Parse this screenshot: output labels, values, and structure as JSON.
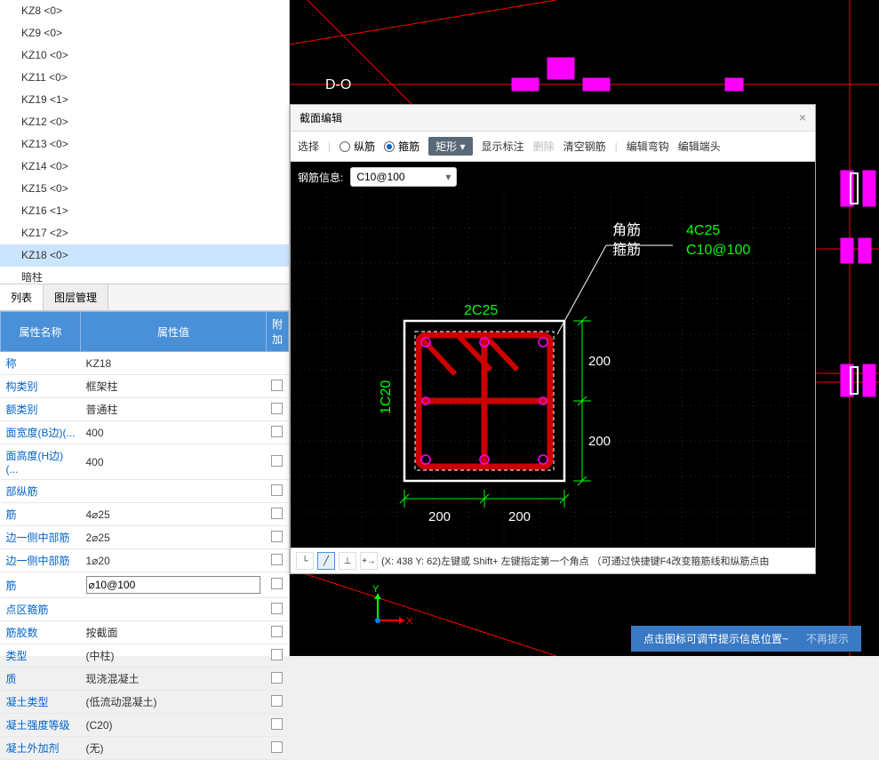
{
  "tree": {
    "items": [
      {
        "label": "KZ8  <0>",
        "selected": false
      },
      {
        "label": "KZ9  <0>",
        "selected": false
      },
      {
        "label": "KZ10  <0>",
        "selected": false
      },
      {
        "label": "KZ11  <0>",
        "selected": false
      },
      {
        "label": "KZ19  <1>",
        "selected": false
      },
      {
        "label": "KZ12  <0>",
        "selected": false
      },
      {
        "label": "KZ13  <0>",
        "selected": false
      },
      {
        "label": "KZ14  <0>",
        "selected": false
      },
      {
        "label": "KZ15  <0>",
        "selected": false
      },
      {
        "label": "KZ16  <1>",
        "selected": false
      },
      {
        "label": "KZ17  <2>",
        "selected": false
      },
      {
        "label": "KZ18  <0>",
        "selected": true
      },
      {
        "label": "暗柱",
        "selected": false
      }
    ]
  },
  "tabs": {
    "tab1": "列表",
    "tab2": "图层管理"
  },
  "props": {
    "header_name": "属性名称",
    "header_value": "属性值",
    "header_extra": "附加",
    "rows": [
      {
        "name": "称",
        "value": "KZ18"
      },
      {
        "name": "构类别",
        "value": "框架柱",
        "chk": true
      },
      {
        "name": "额类别",
        "value": "普通柱",
        "chk": true
      },
      {
        "name": "面宽度(B边)(...",
        "value": "400",
        "chk": true
      },
      {
        "name": "面高度(H边)(...",
        "value": "400",
        "chk": true
      },
      {
        "name": "部纵筋",
        "value": "",
        "chk": true
      },
      {
        "name": "筋",
        "value": "4⌀25",
        "chk": true
      },
      {
        "name": "边一侧中部筋",
        "value": "2⌀25",
        "chk": true
      },
      {
        "name": "边一侧中部筋",
        "value": "1⌀20",
        "chk": true
      },
      {
        "name": "筋",
        "value": "⌀10@100",
        "chk": true,
        "editing": true
      },
      {
        "name": "点区箍筋",
        "value": "",
        "chk": true
      },
      {
        "name": "筋胶数",
        "value": "按截面",
        "chk": true
      },
      {
        "name": "类型",
        "value": "(中柱)",
        "chk": true
      },
      {
        "name": "质",
        "value": "现浇混凝土",
        "chk": true
      },
      {
        "name": "凝土类型",
        "value": "(低流动混凝土)",
        "chk": true
      },
      {
        "name": "凝土强度等级",
        "value": "(C20)",
        "chk": true
      },
      {
        "name": "凝土外加剂",
        "value": "(无)",
        "chk": true
      }
    ]
  },
  "dialog": {
    "title": "截面编辑",
    "toolbar": {
      "select": "选择",
      "radio1": "纵筋",
      "radio2": "箍筋",
      "shape_btn": "矩形",
      "show_label": "显示标注",
      "delete": "删除",
      "clear": "清空钢筋",
      "edit_hook": "编辑弯钩",
      "edit_end": "编辑端头"
    },
    "info": {
      "label": "钢筋信息:",
      "value": "C10@100"
    },
    "annotations": {
      "corner": "角筋",
      "stirrup": "箍筋",
      "spec1": "4C25",
      "spec2": "C10@100",
      "top_label": "2C25",
      "left_label": "1C20",
      "dim_200_a": "200",
      "dim_200_b": "200",
      "dim_200_c": "200",
      "dim_200_d": "200"
    },
    "status": {
      "coords": "(X: 438 Y: 62)左键或 Shift+ 左键指定第一个角点 （可通过快捷键F4改变箍筋线和纵筋点由"
    }
  },
  "canvas": {
    "label_DO": "D-O",
    "colors": {
      "red": "#ff0000",
      "magenta": "#ff00ff",
      "cyan": "#00ffff",
      "green": "#00ff00",
      "white": "#ffffff",
      "darkred": "#cc0000"
    }
  },
  "gizmo": {
    "x": "X",
    "y": "Y"
  },
  "tip": {
    "text": "点击图标可调节提示信息位置~",
    "dismiss": "不再提示"
  }
}
